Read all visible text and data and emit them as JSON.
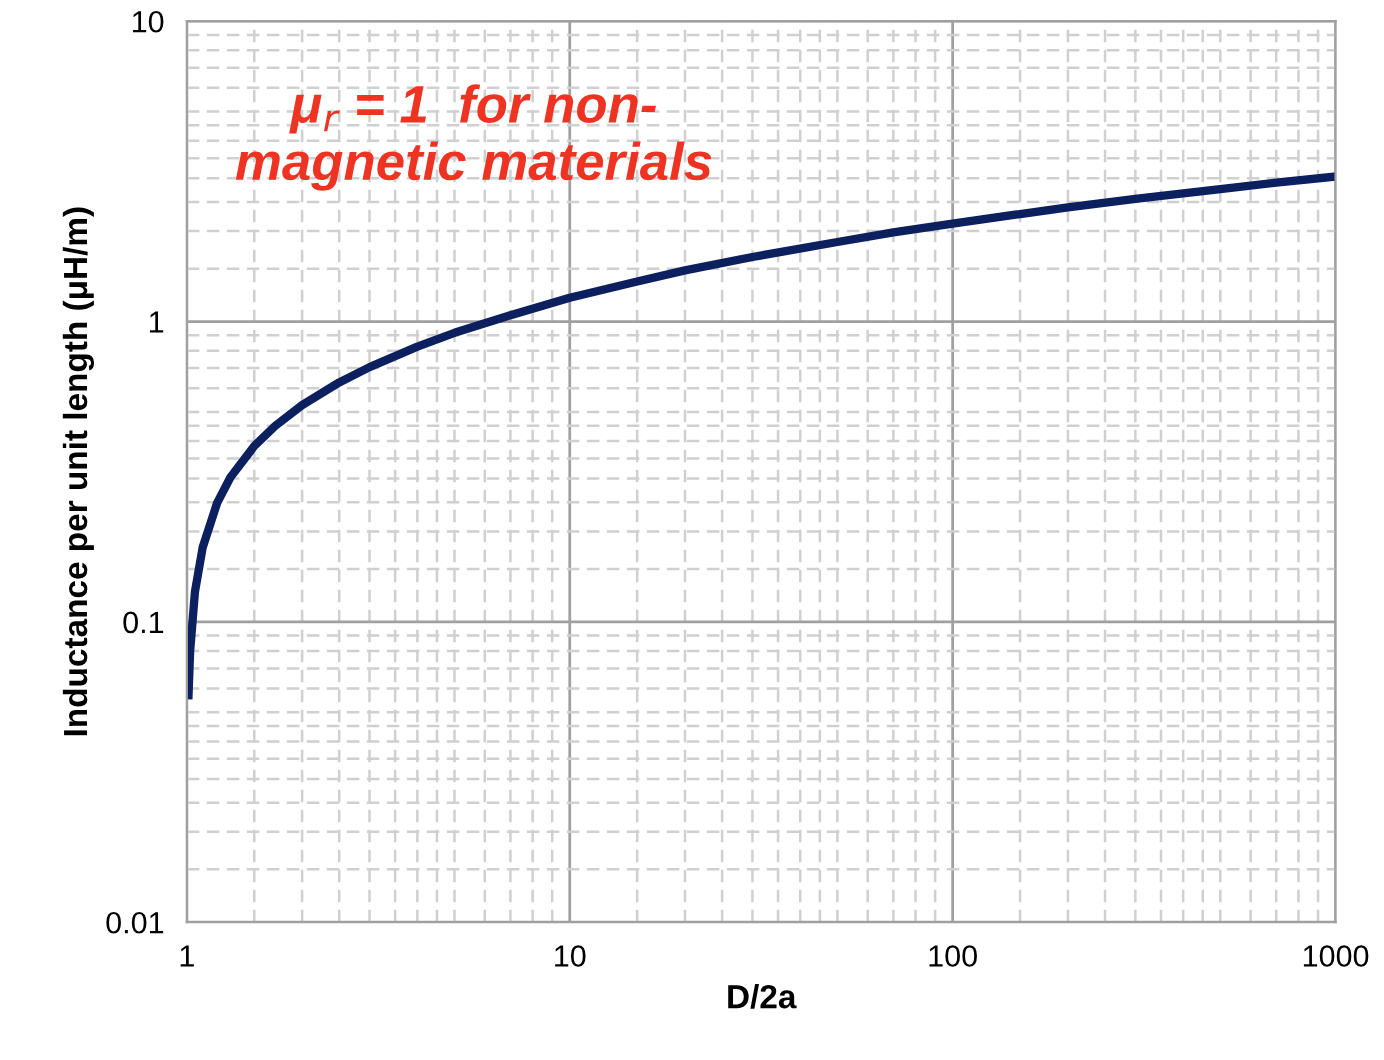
{
  "chart_data": {
    "type": "line",
    "xlabel": "D/2a",
    "ylabel": "Inductance per unit length (μH/m)",
    "annotations": [
      "μ$_{r}$ = 1  for non-\nmagnetic materials"
    ],
    "log": "xy",
    "xlim": [
      1,
      1000
    ],
    "ylim": [
      0.01,
      10
    ],
    "xticks": [
      1,
      10,
      100,
      1000
    ],
    "yticks": [
      0.01,
      0.1,
      1,
      10
    ],
    "grid": true,
    "series": [
      {
        "color": "#0c1f5e",
        "x": [
          1.01,
          1.02,
          1.05,
          1.1,
          1.2,
          1.3,
          1.5,
          1.7,
          2,
          2.5,
          3,
          4,
          5,
          7,
          10,
          15,
          20,
          30,
          50,
          70,
          100,
          150,
          200,
          300,
          500,
          700,
          1000
        ],
        "values": [
          0.057,
          0.08,
          0.126,
          0.177,
          0.249,
          0.303,
          0.385,
          0.449,
          0.527,
          0.627,
          0.705,
          0.825,
          0.917,
          1.05,
          1.2,
          1.36,
          1.48,
          1.64,
          1.84,
          1.98,
          2.12,
          2.28,
          2.4,
          2.56,
          2.76,
          2.9,
          3.04
        ]
      }
    ]
  }
}
